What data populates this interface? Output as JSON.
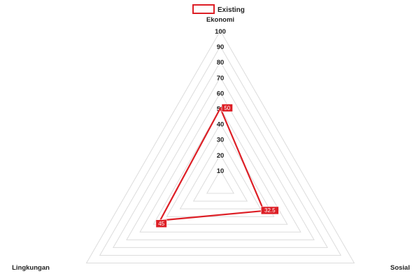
{
  "chart_data": {
    "type": "radar",
    "axes": [
      "Ekonomi",
      "Sosial",
      "Lingkungan"
    ],
    "r_ticks": [
      10,
      20,
      30,
      40,
      50,
      60,
      70,
      80,
      90,
      100
    ],
    "r_range": [
      0,
      100
    ],
    "grid": true,
    "legend_position": "top-center",
    "series": [
      {
        "name": "Existing",
        "values": [
          50,
          32.5,
          45
        ],
        "color": "#dd1f26"
      }
    ],
    "data_labels": [
      "50",
      "32.5",
      "45"
    ]
  }
}
